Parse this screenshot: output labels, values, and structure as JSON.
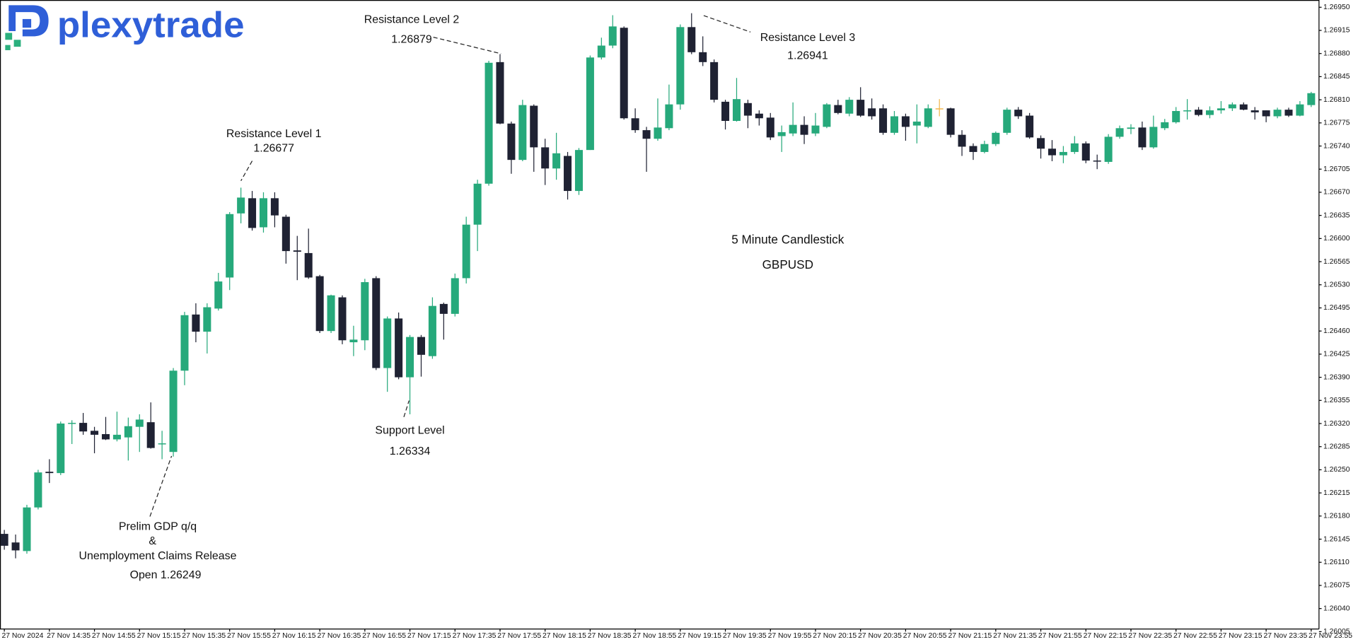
{
  "logo": "plexytrade",
  "chart_data": {
    "type": "candlestick",
    "title": "5 Minute Candlestick",
    "subtitle": "GBPUSD",
    "up_color": "#26a97b",
    "down_color": "#1f2233",
    "doji_color": "#f2b64a",
    "grid": false,
    "ylim": [
      1.26009,
      1.26961
    ],
    "yticks": [
      1.26005,
      {
        "value": 1.2604,
        "label": "1.26040"
      },
      1.26075,
      {
        "value": 1.2611,
        "label": "1.26110"
      },
      1.26145,
      {
        "value": 1.2618,
        "label": "1.26180"
      },
      1.26215,
      {
        "value": 1.2625,
        "label": "1.26250"
      },
      1.26285,
      {
        "value": 1.2632,
        "label": "1.26320"
      },
      1.26355,
      {
        "value": 1.2639,
        "label": "1.26390"
      },
      1.26425,
      {
        "value": 1.2646,
        "label": "1.26460"
      },
      1.26495,
      {
        "value": 1.2653,
        "label": "1.26530"
      },
      1.26565,
      {
        "value": 1.266,
        "label": "1.26600"
      },
      1.26635,
      {
        "value": 1.2667,
        "label": "1.26670"
      },
      1.26705,
      {
        "value": 1.2674,
        "label": "1.26740"
      },
      1.26775,
      {
        "value": 1.2681,
        "label": "1.26810"
      },
      1.26845,
      {
        "value": 1.2688,
        "label": "1.26880"
      },
      1.26915,
      {
        "value": 1.2695,
        "label": "1.26950"
      }
    ],
    "categories": [
      "27 Nov 2024",
      null,
      null,
      null,
      "27 Nov 14:35",
      null,
      null,
      null,
      "27 Nov 14:55",
      null,
      null,
      null,
      "27 Nov 15:15",
      null,
      null,
      null,
      "27 Nov 15:35",
      null,
      null,
      null,
      "27 Nov 15:55",
      null,
      null,
      null,
      "27 Nov 16:15",
      null,
      null,
      null,
      "27 Nov 16:35",
      null,
      null,
      null,
      "27 Nov 16:55",
      null,
      null,
      null,
      "27 Nov 17:15",
      null,
      null,
      null,
      "27 Nov 17:35",
      null,
      null,
      null,
      "27 Nov 17:55",
      null,
      null,
      null,
      "27 Nov 18:15",
      null,
      null,
      null,
      "27 Nov 18:35",
      null,
      null,
      null,
      "27 Nov 18:55",
      null,
      null,
      null,
      "27 Nov 19:15",
      null,
      null,
      null,
      "27 Nov 19:35",
      null,
      null,
      null,
      "27 Nov 19:55",
      null,
      null,
      null,
      "27 Nov 20:15",
      null,
      null,
      null,
      "27 Nov 20:35",
      null,
      null,
      null,
      "27 Nov 20:55",
      null,
      null,
      null,
      "27 Nov 21:15",
      null,
      null,
      null,
      "27 Nov 21:35",
      null,
      null,
      null,
      "27 Nov 21:55",
      null,
      null,
      null,
      "27 Nov 22:15",
      null,
      null,
      null,
      "27 Nov 22:35",
      null,
      null,
      null,
      "27 Nov 22:55",
      null,
      null,
      null,
      "27 Nov 23:15",
      null,
      null,
      null,
      "27 Nov 23:35",
      null,
      null,
      null,
      "27 Nov 23:55"
    ],
    "open": [
      1.26153,
      1.2614,
      1.26127,
      1.26193,
      1.26247,
      1.26245,
      1.2632,
      1.26321,
      1.26309,
      1.26304,
      1.26296,
      1.26299,
      1.26315,
      1.26322,
      1.26289,
      1.26277,
      1.264,
      1.26485,
      1.26459,
      1.26494,
      1.26541,
      1.26638,
      1.26661,
      1.26617,
      1.26661,
      1.26633,
      1.26582,
      1.26578,
      1.26543,
      1.2646,
      1.26511,
      1.26443,
      1.26446,
      1.2654,
      1.26404,
      1.26479,
      1.2639,
      1.26451,
      1.26422,
      1.26501,
      1.26486,
      1.2654,
      1.26621,
      1.26683,
      1.26867,
      1.26774,
      1.26719,
      1.26801,
      1.26738,
      1.26706,
      1.26725,
      1.26672,
      1.26734,
      1.26874,
      1.26892,
      1.26919,
      1.26782,
      1.26764,
      1.26751,
      1.26767,
      1.26803,
      1.2692,
      1.26882,
      1.26867,
      1.26807,
      1.26778,
      1.26805,
      1.26789,
      1.26783,
      1.26755,
      1.26759,
      1.26772,
      1.26759,
      1.26769,
      1.26802,
      1.26789,
      1.2681,
      1.26797,
      1.26797,
      1.2676,
      1.26785,
      1.26771,
      1.26769,
      1.26797,
      1.26797,
      1.26757,
      1.2674,
      1.26731,
      1.26743,
      1.2676,
      1.26795,
      1.26786,
      1.26752,
      1.26736,
      1.26726,
      1.26731,
      1.26744,
      1.26718,
      1.26716,
      1.26754,
      1.26766,
      1.26768,
      1.26738,
      1.26767,
      1.26776,
      1.26793,
      1.26795,
      1.26787,
      1.26794,
      1.26797,
      1.26803,
      1.26794,
      1.26794,
      1.26785,
      1.26795,
      1.26786,
      1.26802
    ],
    "high": [
      1.26159,
      1.26152,
      1.26197,
      1.2625,
      1.26266,
      1.26323,
      1.26325,
      1.26336,
      1.26315,
      1.2633,
      1.26338,
      1.26329,
      1.26334,
      1.26352,
      1.26309,
      1.26404,
      1.26489,
      1.26502,
      1.26502,
      1.26548,
      1.2664,
      1.26677,
      1.26672,
      1.2667,
      1.2667,
      1.26636,
      1.26604,
      1.26615,
      1.26545,
      1.26515,
      1.26514,
      1.26468,
      1.26539,
      1.26543,
      1.26482,
      1.26488,
      1.26454,
      1.26454,
      1.26511,
      1.26503,
      1.26547,
      1.26633,
      1.26689,
      1.26869,
      1.26879,
      1.26777,
      1.2681,
      1.26803,
      1.26751,
      1.2676,
      1.26731,
      1.26737,
      1.26877,
      1.26904,
      1.26938,
      1.26921,
      1.26797,
      1.26769,
      1.26812,
      1.26833,
      1.26924,
      1.26941,
      1.26906,
      1.26871,
      1.2681,
      1.26843,
      1.2681,
      1.26794,
      1.2679,
      1.26771,
      1.26806,
      1.26785,
      1.2679,
      1.26805,
      1.2681,
      1.26814,
      1.26829,
      1.26812,
      1.26803,
      1.26793,
      1.26789,
      1.26803,
      1.26803,
      1.26811,
      1.26798,
      1.26764,
      1.26744,
      1.26748,
      1.26762,
      1.26798,
      1.26799,
      1.2679,
      1.26756,
      1.26749,
      1.2674,
      1.26755,
      1.26747,
      1.26727,
      1.26758,
      1.26771,
      1.26773,
      1.26777,
      1.26786,
      1.26781,
      1.26799,
      1.26811,
      1.26799,
      1.268,
      1.26808,
      1.26806,
      1.26806,
      1.26799,
      1.26794,
      1.26798,
      1.26798,
      1.26808,
      1.26822
    ],
    "low": [
      1.26129,
      1.26116,
      1.26123,
      1.2619,
      1.2623,
      1.26242,
      1.26289,
      1.26303,
      1.26275,
      1.26295,
      1.26293,
      1.26264,
      1.26277,
      1.26282,
      1.26266,
      1.2627,
      1.26378,
      1.26443,
      1.26426,
      1.26491,
      1.26522,
      1.26623,
      1.26612,
      1.26609,
      1.26617,
      1.26562,
      1.26537,
      1.26539,
      1.26457,
      1.26457,
      1.2644,
      1.26422,
      1.26431,
      1.26401,
      1.26368,
      1.26387,
      1.26334,
      1.26391,
      1.26418,
      1.26447,
      1.26482,
      1.26532,
      1.26581,
      1.2668,
      1.26773,
      1.26698,
      1.26717,
      1.26701,
      1.26681,
      1.26689,
      1.26659,
      1.26666,
      1.26734,
      1.26871,
      1.26888,
      1.2678,
      1.2676,
      1.26701,
      1.26748,
      1.26764,
      1.26795,
      1.26879,
      1.26861,
      1.26806,
      1.26765,
      1.26777,
      1.26767,
      1.26771,
      1.26749,
      1.26731,
      1.26755,
      1.26743,
      1.26755,
      1.26767,
      1.26788,
      1.26785,
      1.26784,
      1.2678,
      1.26757,
      1.26757,
      1.26748,
      1.26744,
      1.26767,
      1.26785,
      1.26753,
      1.26725,
      1.26719,
      1.26729,
      1.2674,
      1.26757,
      1.26781,
      1.26751,
      1.26721,
      1.26717,
      1.26714,
      1.26728,
      1.26714,
      1.26705,
      1.26713,
      1.26751,
      1.26758,
      1.26734,
      1.26736,
      1.26764,
      1.26774,
      1.2678,
      1.26785,
      1.26782,
      1.26789,
      1.26793,
      1.26794,
      1.2678,
      1.26776,
      1.26782,
      1.26784,
      1.26785,
      1.26799
    ],
    "close": [
      1.26135,
      1.26128,
      1.26193,
      1.26246,
      1.26245,
      1.2632,
      1.26321,
      1.26308,
      1.26303,
      1.26296,
      1.26303,
      1.26316,
      1.26326,
      1.26283,
      1.2629,
      1.264,
      1.26484,
      1.26459,
      1.26496,
      1.26535,
      1.26637,
      1.26662,
      1.26616,
      1.26661,
      1.26635,
      1.26581,
      1.2658,
      1.26541,
      1.2646,
      1.26514,
      1.26446,
      1.26447,
      1.26534,
      1.26404,
      1.26479,
      1.2639,
      1.26451,
      1.26424,
      1.26498,
      1.26486,
      1.2654,
      1.26621,
      1.26683,
      1.26866,
      1.26774,
      1.26719,
      1.26802,
      1.26738,
      1.26706,
      1.26729,
      1.26672,
      1.26734,
      1.26874,
      1.26892,
      1.26921,
      1.26782,
      1.26764,
      1.26751,
      1.26768,
      1.26803,
      1.2692,
      1.26882,
      1.26867,
      1.2681,
      1.26778,
      1.26811,
      1.26786,
      1.26782,
      1.26753,
      1.26761,
      1.26772,
      1.26757,
      1.26771,
      1.26803,
      1.2679,
      1.2681,
      1.26786,
      1.26785,
      1.2676,
      1.26785,
      1.26769,
      1.26777,
      1.26797,
      1.26797,
      1.26757,
      1.26739,
      1.26731,
      1.26743,
      1.2676,
      1.26795,
      1.26785,
      1.26753,
      1.26736,
      1.26726,
      1.26731,
      1.26744,
      1.26718,
      1.26717,
      1.26754,
      1.26767,
      1.26768,
      1.26738,
      1.26769,
      1.26776,
      1.26793,
      1.26794,
      1.26787,
      1.26794,
      1.26797,
      1.26803,
      1.26795,
      1.26791,
      1.26785,
      1.26795,
      1.26786,
      1.26803,
      1.2682
    ],
    "annotations": [
      {
        "lines": [
          "Resistance Level 1",
          1.26677
        ]
      },
      {
        "lines": [
          "Resistance Level 2",
          1.26879
        ]
      },
      {
        "lines": [
          "Resistance Level 3",
          1.26941
        ]
      },
      {
        "lines": [
          "Support Level",
          1.26334
        ]
      },
      {
        "lines": [
          "Prelim GDP q/q",
          "&",
          "Unemployment Claims Release",
          "Open 1.26249"
        ]
      }
    ]
  }
}
